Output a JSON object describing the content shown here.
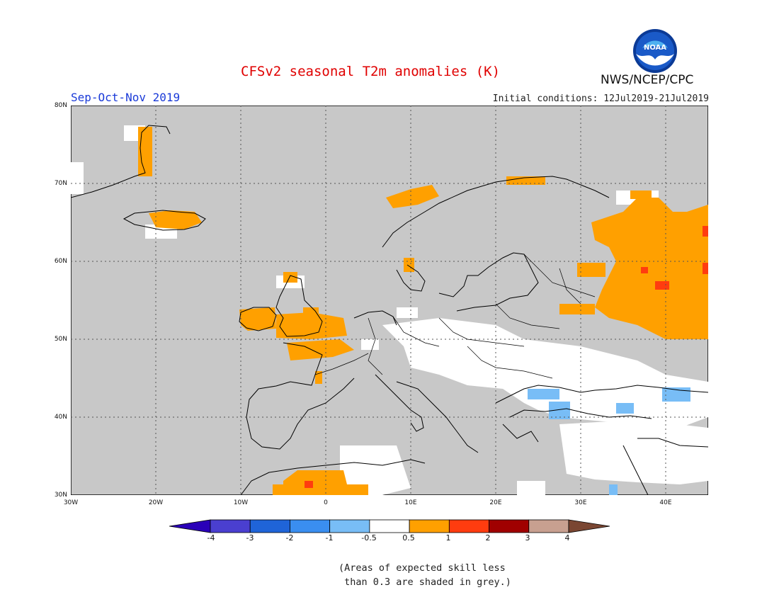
{
  "title": "CFSv2 seasonal T2m anomalies (K)",
  "season": "Sep-Oct-Nov 2019",
  "initial_conditions": "Initial conditions: 12Jul2019-21Jul2019",
  "agency": "NWS/NCEP/CPC",
  "logo_text": "NOAA",
  "map": {
    "lon_range": [
      -30,
      45
    ],
    "lat_range": [
      30,
      80
    ],
    "lat_labels": [
      "80N",
      "70N",
      "60N",
      "50N",
      "40N",
      "30N"
    ],
    "lon_labels": [
      "30W",
      "20W",
      "10W",
      "0",
      "10E",
      "20E",
      "30E",
      "40E"
    ],
    "grid": "dotted",
    "skill_mask_color": "#c8c8c8"
  },
  "legend": {
    "labels": [
      "-4",
      "-3",
      "-2",
      "-1",
      "-0.5",
      "0.5",
      "1",
      "2",
      "3",
      "4"
    ],
    "colors": [
      "#2a00b8",
      "#4a3fd0",
      "#1f64d8",
      "#3a8ef0",
      "#78bdf6",
      "#ffffff",
      "#ffa000",
      "#ff3c0f",
      "#a00000",
      "#c8a090",
      "#7a4632"
    ]
  },
  "note": "(Areas of expected skill less\n than 0.3 are shaded in grey.)"
}
